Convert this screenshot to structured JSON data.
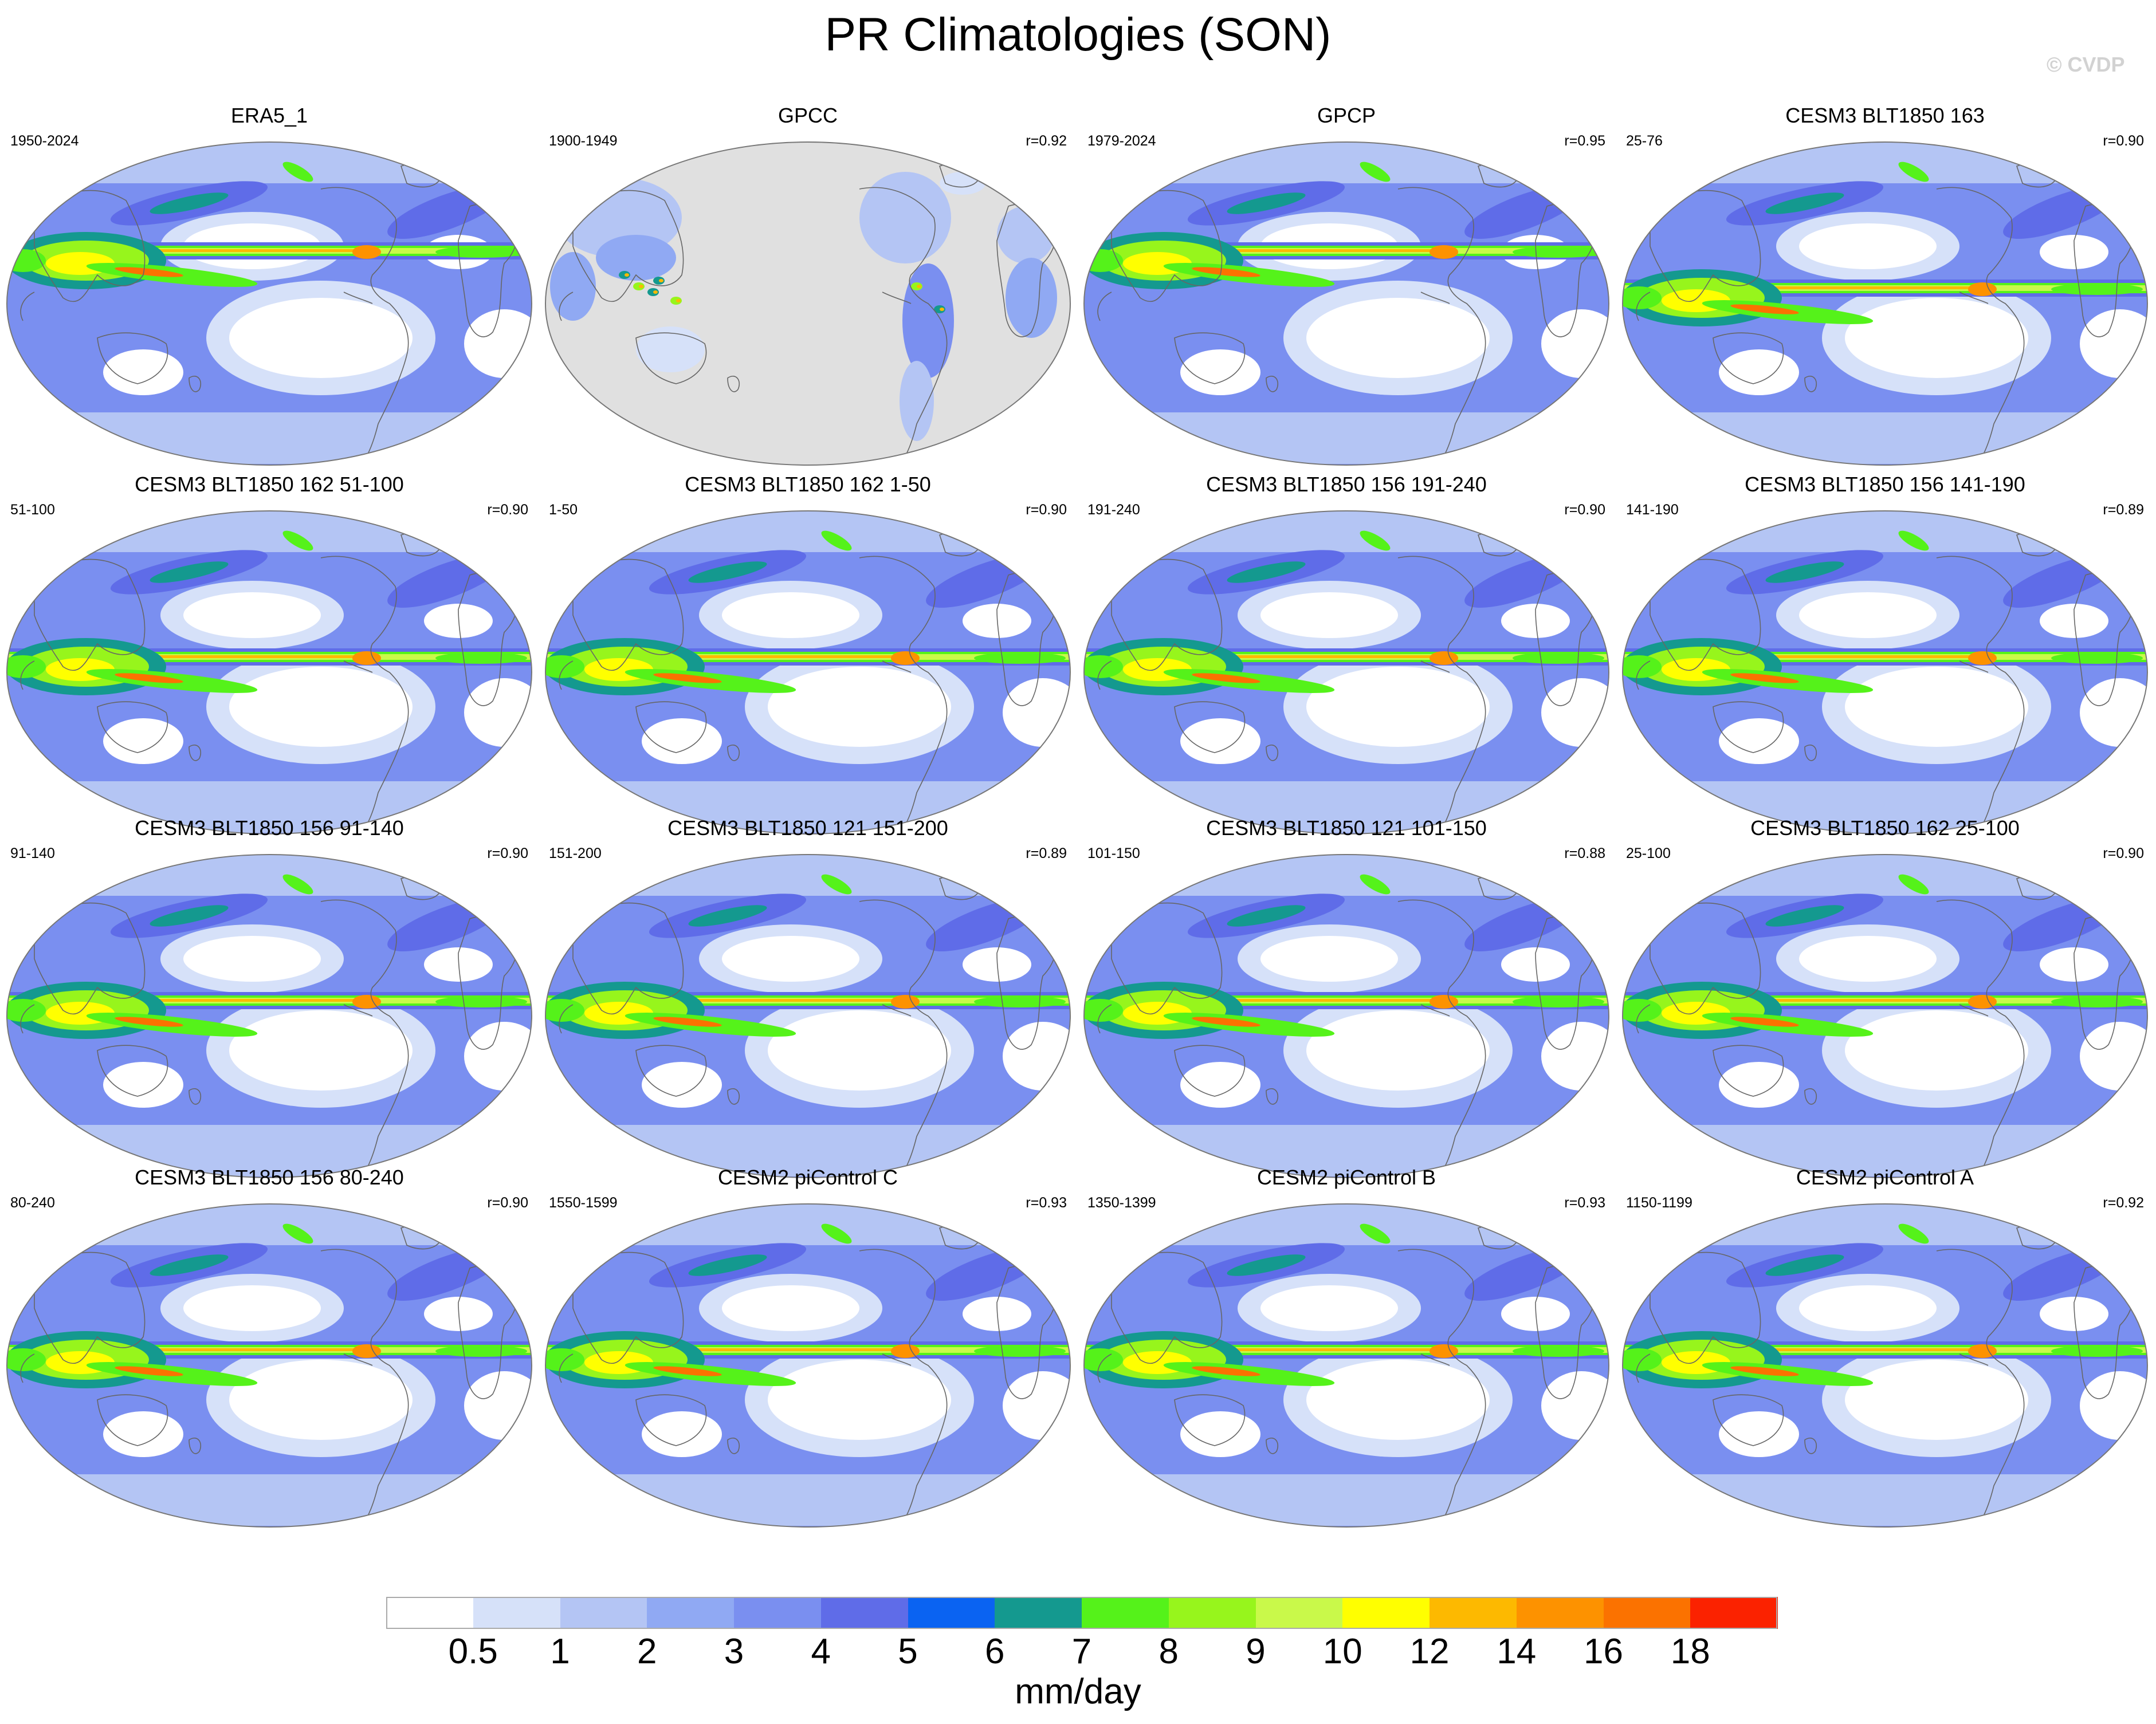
{
  "title": "PR Climatologies (SON)",
  "watermark": "© CVDP",
  "panels": [
    {
      "name": "ERA5_1",
      "years": "1950-2024",
      "r": ""
    },
    {
      "name": "GPCC",
      "years": "1900-1949",
      "r": "r=0.92"
    },
    {
      "name": "GPCP",
      "years": "1979-2024",
      "r": "r=0.95"
    },
    {
      "name": "CESM3 BLT1850 163",
      "years": "25-76",
      "r": "r=0.90"
    },
    {
      "name": "CESM3 BLT1850 162 51-100",
      "years": "51-100",
      "r": "r=0.90"
    },
    {
      "name": "CESM3 BLT1850 162 1-50",
      "years": "1-50",
      "r": "r=0.90"
    },
    {
      "name": "CESM3 BLT1850 156 191-240",
      "years": "191-240",
      "r": "r=0.90"
    },
    {
      "name": "CESM3 BLT1850 156 141-190",
      "years": "141-190",
      "r": "r=0.89"
    },
    {
      "name": "CESM3 BLT1850 156 91-140",
      "years": "91-140",
      "r": "r=0.90"
    },
    {
      "name": "CESM3 BLT1850 121 151-200",
      "years": "151-200",
      "r": "r=0.89"
    },
    {
      "name": "CESM3 BLT1850 121 101-150",
      "years": "101-150",
      "r": "r=0.88"
    },
    {
      "name": "CESM3 BLT1850 162 25-100",
      "years": "25-100",
      "r": "r=0.90"
    },
    {
      "name": "CESM3 BLT1850 156 80-240",
      "years": "80-240",
      "r": "r=0.90"
    },
    {
      "name": "CESM2 piControl C",
      "years": "1550-1599",
      "r": "r=0.93"
    },
    {
      "name": "CESM2 piControl B",
      "years": "1350-1399",
      "r": "r=0.93"
    },
    {
      "name": "CESM2 piControl A",
      "years": "1150-1199",
      "r": "r=0.92"
    }
  ],
  "colorbar": {
    "units": "mm/day",
    "labels": [
      "0.5",
      "1",
      "2",
      "3",
      "4",
      "5",
      "6",
      "7",
      "8",
      "9",
      "10",
      "12",
      "14",
      "16",
      "18"
    ],
    "colors": [
      "#ffffff",
      "#d6e1f9",
      "#b4c5f4",
      "#90a9f3",
      "#7a8ff0",
      "#5f6ce8",
      "#0a63f2",
      "#14998f",
      "#55f21a",
      "#97f51c",
      "#c9f94a",
      "#ffff00",
      "#fdb900",
      "#fd9200",
      "#fb7200",
      "#fb2200"
    ]
  },
  "missing_color": "#e0e0e0"
}
